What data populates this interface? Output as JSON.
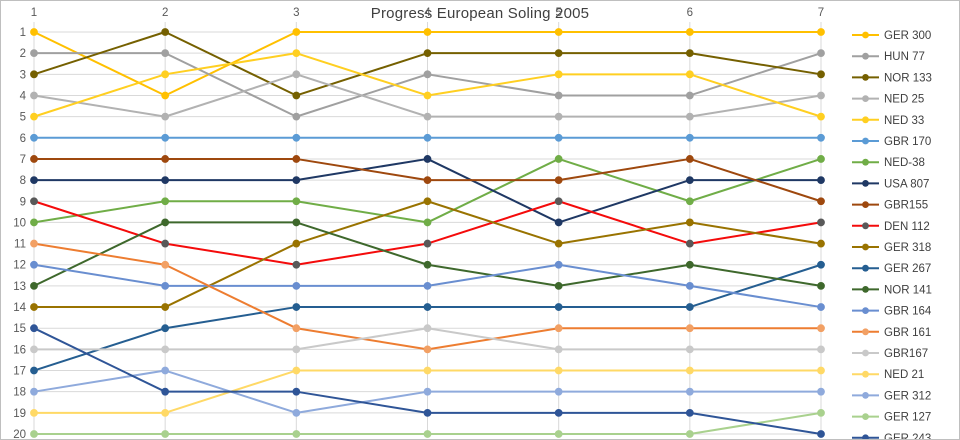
{
  "window": {
    "title": "Progress European Soling 2005"
  },
  "colors": {
    "background": "#ffffff",
    "border": "#bfbfbf",
    "gridline": "#d9d9d9",
    "axis_text": "#595959",
    "title_text": "#404040",
    "legend_text": "#404040"
  },
  "chart_data": {
    "type": "line",
    "title": "Progress European Soling 2005",
    "xlabel": "",
    "ylabel": "",
    "x_axis_position": "top",
    "x": [
      1,
      2,
      3,
      4,
      5,
      6,
      7
    ],
    "x_tick_labels": [
      "1",
      "2",
      "3",
      "4",
      "5",
      "6",
      "7"
    ],
    "y_ticks": [
      1,
      2,
      3,
      4,
      5,
      6,
      7,
      8,
      9,
      10,
      11,
      12,
      13,
      14,
      15,
      16,
      17,
      18,
      19,
      20
    ],
    "y_axis": {
      "min": 1,
      "max": 20,
      "inverted": true,
      "meaning": "overall ranking position"
    },
    "grid": true,
    "legend_position": "right",
    "series": [
      {
        "name": "GER 300",
        "color": "#ffc000",
        "marker_color": "#ffc000",
        "values": [
          1,
          4,
          1,
          1,
          1,
          1,
          1
        ]
      },
      {
        "name": "HUN 77",
        "color": "#a0a0a0",
        "marker_color": "#a0a0a0",
        "values": [
          2,
          2,
          5,
          3,
          4,
          4,
          2
        ]
      },
      {
        "name": "NOR 133",
        "color": "#756000",
        "marker_color": "#756000",
        "values": [
          3,
          1,
          4,
          2,
          2,
          2,
          3
        ]
      },
      {
        "name": "NED 25",
        "color": "#b2b2b2",
        "marker_color": "#b2b2b2",
        "values": [
          4,
          5,
          3,
          5,
          5,
          5,
          4
        ]
      },
      {
        "name": "NED 33",
        "color": "#ffcf21",
        "marker_color": "#ffcf21",
        "values": [
          5,
          3,
          2,
          4,
          3,
          3,
          5
        ]
      },
      {
        "name": "GBR 170",
        "color": "#5b9bd5",
        "marker_color": "#5b9bd5",
        "values": [
          6,
          6,
          6,
          6,
          6,
          6,
          6
        ]
      },
      {
        "name": "NED-38",
        "color": "#70ad47",
        "marker_color": "#70ad47",
        "values": [
          10,
          9,
          9,
          10,
          7,
          9,
          7
        ]
      },
      {
        "name": "USA 807",
        "color": "#1f3864",
        "marker_color": "#1f3864",
        "values": [
          8,
          8,
          8,
          7,
          10,
          8,
          8
        ]
      },
      {
        "name": "GBR155",
        "color": "#9e480e",
        "marker_color": "#9e480e",
        "values": [
          7,
          7,
          7,
          8,
          8,
          7,
          9
        ]
      },
      {
        "name": "DEN 112",
        "color": "#f40b0b",
        "marker_color": "#595959",
        "values": [
          9,
          11,
          12,
          11,
          9,
          11,
          10
        ]
      },
      {
        "name": "GER 318",
        "color": "#997300",
        "marker_color": "#997300",
        "values": [
          14,
          14,
          11,
          9,
          11,
          10,
          11
        ]
      },
      {
        "name": "GER 267",
        "color": "#255e91",
        "marker_color": "#255e91",
        "values": [
          17,
          15,
          14,
          14,
          14,
          14,
          12
        ]
      },
      {
        "name": "NOR 141",
        "color": "#3e682c",
        "marker_color": "#3e682c",
        "values": [
          13,
          10,
          10,
          12,
          13,
          12,
          13
        ]
      },
      {
        "name": "GBR 164",
        "color": "#698ed0",
        "marker_color": "#698ed0",
        "values": [
          12,
          13,
          13,
          13,
          12,
          13,
          14
        ]
      },
      {
        "name": "GBR 161",
        "color": "#ed7d31",
        "marker_color": "#f2a064",
        "values": [
          11,
          12,
          15,
          16,
          15,
          15,
          15
        ]
      },
      {
        "name": "GBR167",
        "color": "#c9c9c9",
        "marker_color": "#c9c9c9",
        "values": [
          16,
          16,
          16,
          15,
          16,
          16,
          16
        ]
      },
      {
        "name": "NED 21",
        "color": "#ffd966",
        "marker_color": "#ffd966",
        "values": [
          19,
          19,
          17,
          17,
          17,
          17,
          17
        ]
      },
      {
        "name": "GER 312",
        "color": "#8faadc",
        "marker_color": "#8faadc",
        "values": [
          18,
          17,
          19,
          18,
          18,
          18,
          18
        ]
      },
      {
        "name": "GER 127",
        "color": "#a9d18e",
        "marker_color": "#a9d18e",
        "values": [
          20,
          20,
          20,
          20,
          20,
          20,
          19
        ]
      },
      {
        "name": "GER 243",
        "color": "#2f5597",
        "marker_color": "#2f5597",
        "values": [
          15,
          18,
          18,
          19,
          19,
          19,
          20
        ]
      }
    ]
  }
}
